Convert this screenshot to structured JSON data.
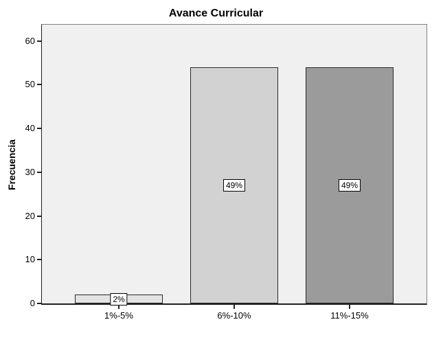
{
  "chart_data": {
    "type": "bar",
    "title": "Avance Curricular",
    "xlabel": "",
    "ylabel": "Frecuencia",
    "categories": [
      "1%-5%",
      "6%-10%",
      "11%-15%"
    ],
    "values": [
      2,
      54,
      54
    ],
    "bar_labels": [
      "2%",
      "49%",
      "49%"
    ],
    "bar_colors": [
      "#e3e3e3",
      "#d2d2d2",
      "#9b9b9b"
    ],
    "bar_border_color": "#262626",
    "yticks": [
      0,
      10,
      20,
      30,
      40,
      50,
      60
    ],
    "ylim": [
      0,
      63.7
    ],
    "grid": false,
    "legend": "none",
    "plot_background": "#f0f0f0",
    "axis_color": "#1f1f1f",
    "frame_color": "#7f7f7f",
    "value_label_box": {
      "background": "#ffffff",
      "border": "#000000"
    }
  }
}
